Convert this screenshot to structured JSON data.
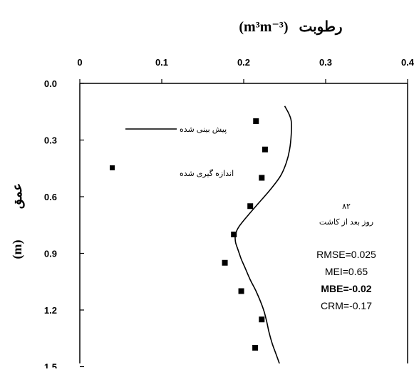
{
  "chart_data": {
    "type": "line",
    "title_top": "رطوبت",
    "title_top_unit": "(m³m⁻³)",
    "ylabel": "عمق",
    "ylabel_unit": "(m)",
    "xlim": [
      0,
      0.4
    ],
    "ylim": [
      0,
      1.5
    ],
    "x_axis_position": "top",
    "y_inverted": true,
    "x_ticks": [
      "0",
      "0.1",
      "0.2",
      "0.3",
      "0.4"
    ],
    "x_tick_values": [
      0,
      0.1,
      0.2,
      0.3,
      0.4
    ],
    "y_ticks": [
      "0.0",
      "0.3",
      "0.6",
      "0.9",
      "1.2",
      "1.5"
    ],
    "y_tick_values": [
      0,
      0.3,
      0.6,
      0.9,
      1.2,
      1.5
    ],
    "grid": false,
    "legend_position": "top-left",
    "series": [
      {
        "name": "پیش بینی شده",
        "kind": "line",
        "color": "#000000",
        "points": [
          [
            0.25,
            0.12
          ],
          [
            0.255,
            0.16
          ],
          [
            0.258,
            0.2
          ],
          [
            0.258,
            0.27
          ],
          [
            0.256,
            0.35
          ],
          [
            0.252,
            0.42
          ],
          [
            0.245,
            0.49
          ],
          [
            0.233,
            0.56
          ],
          [
            0.219,
            0.63
          ],
          [
            0.205,
            0.7
          ],
          [
            0.194,
            0.76
          ],
          [
            0.19,
            0.8
          ],
          [
            0.19,
            0.84
          ],
          [
            0.193,
            0.88
          ],
          [
            0.197,
            0.93
          ],
          [
            0.202,
            0.98
          ],
          [
            0.208,
            1.04
          ],
          [
            0.215,
            1.1
          ],
          [
            0.221,
            1.16
          ],
          [
            0.225,
            1.21
          ],
          [
            0.228,
            1.26
          ],
          [
            0.231,
            1.32
          ],
          [
            0.235,
            1.38
          ],
          [
            0.24,
            1.44
          ],
          [
            0.245,
            1.5
          ]
        ]
      },
      {
        "name": "اندازه گیری شده",
        "kind": "scatter",
        "color": "#000000",
        "points": [
          [
            0.215,
            0.2
          ],
          [
            0.226,
            0.35
          ],
          [
            0.222,
            0.5
          ],
          [
            0.208,
            0.65
          ],
          [
            0.188,
            0.8
          ],
          [
            0.177,
            0.95
          ],
          [
            0.197,
            1.1
          ],
          [
            0.222,
            1.25
          ],
          [
            0.214,
            1.4
          ]
        ]
      }
    ],
    "annotation_lines": [
      "۸۲",
      "روز بعد از کاشت"
    ],
    "stats": [
      "RMSE=0.025",
      "MEI=0.65",
      "MBE=-0.02",
      "CRM=-0.17"
    ]
  }
}
